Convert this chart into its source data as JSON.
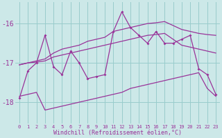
{
  "hours": [
    0,
    1,
    2,
    3,
    4,
    5,
    6,
    7,
    8,
    9,
    10,
    11,
    12,
    13,
    14,
    15,
    16,
    17,
    18,
    19,
    20,
    21,
    22,
    23
  ],
  "main_line": [
    -17.9,
    -17.2,
    -17.0,
    -16.3,
    -17.1,
    -17.3,
    -16.7,
    -17.0,
    -17.4,
    -17.35,
    -17.3,
    -16.2,
    -15.7,
    -16.1,
    -16.3,
    -16.5,
    -16.2,
    -16.5,
    -16.5,
    -16.4,
    -16.3,
    -17.15,
    -17.3,
    -17.8
  ],
  "upper_line": [
    -17.05,
    -17.0,
    -16.95,
    -16.9,
    -16.75,
    -16.65,
    -16.6,
    -16.55,
    -16.45,
    -16.4,
    -16.35,
    -16.2,
    -16.15,
    -16.1,
    -16.05,
    -16.0,
    -15.98,
    -15.95,
    -16.05,
    -16.15,
    -16.2,
    -16.25,
    -16.28,
    -16.3
  ],
  "mid_line": [
    -17.05,
    -17.0,
    -16.98,
    -16.95,
    -16.85,
    -16.8,
    -16.75,
    -16.7,
    -16.65,
    -16.6,
    -16.55,
    -16.5,
    -16.45,
    -16.4,
    -16.35,
    -16.3,
    -16.28,
    -16.25,
    -16.4,
    -16.55,
    -16.6,
    -16.65,
    -16.7,
    -16.75
  ],
  "lower_line": [
    -17.85,
    -17.8,
    -17.75,
    -18.2,
    -18.15,
    -18.1,
    -18.05,
    -18.0,
    -17.95,
    -17.9,
    -17.85,
    -17.8,
    -17.75,
    -17.65,
    -17.6,
    -17.55,
    -17.5,
    -17.45,
    -17.4,
    -17.35,
    -17.3,
    -17.25,
    -17.65,
    -17.85
  ],
  "line_color": "#993399",
  "bg_color": "#cce8e8",
  "grid_color": "#99cccc",
  "ylabel_ticks": [
    -18,
    -17,
    -16
  ],
  "ylim": [
    -18.55,
    -15.45
  ],
  "xlim": [
    -0.5,
    23.5
  ],
  "xlabel": "Windchill (Refroidissement éolien,°C)"
}
